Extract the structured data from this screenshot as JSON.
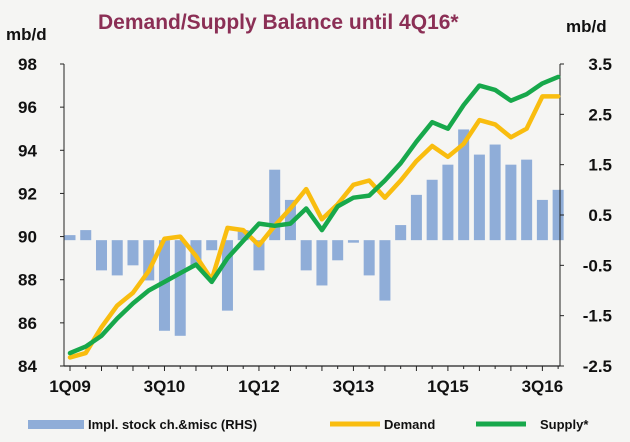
{
  "chart_data": {
    "type": "bar+line",
    "title": "Demand/Supply Balance until 4Q16*",
    "title_color": "#8b2f55",
    "y_left_unit": "mb/d",
    "y_right_unit": "mb/d",
    "y_left_range": [
      84,
      98
    ],
    "y_left_ticks": [
      "84",
      "86",
      "88",
      "90",
      "92",
      "94",
      "96",
      "98"
    ],
    "y_right_range": [
      -2.5,
      3.5
    ],
    "y_right_ticks": [
      "-2.5",
      "-1.5",
      "-0.5",
      "0.5",
      "1.5",
      "2.5",
      "3.5"
    ],
    "x_tick_labels": [
      {
        "label": "1Q09",
        "index": 0
      },
      {
        "label": "3Q10",
        "index": 6
      },
      {
        "label": "1Q12",
        "index": 12
      },
      {
        "label": "3Q13",
        "index": 18
      },
      {
        "label": "1Q15",
        "index": 24
      },
      {
        "label": "3Q16",
        "index": 30
      }
    ],
    "categories": [
      "1Q09",
      "2Q09",
      "3Q09",
      "4Q09",
      "1Q10",
      "2Q10",
      "3Q10",
      "4Q10",
      "1Q11",
      "2Q11",
      "3Q11",
      "4Q11",
      "1Q12",
      "2Q12",
      "3Q12",
      "4Q12",
      "1Q13",
      "2Q13",
      "3Q13",
      "4Q13",
      "1Q14",
      "2Q14",
      "3Q14",
      "4Q14",
      "1Q15",
      "2Q15",
      "3Q15",
      "4Q15",
      "1Q16",
      "2Q16",
      "3Q16",
      "4Q16"
    ],
    "series": [
      {
        "name": "Impl. stock ch.&misc (RHS)",
        "type": "bar",
        "axis": "right",
        "color": "#8fadd8",
        "values": [
          0.1,
          0.2,
          -0.6,
          -0.7,
          -0.5,
          -0.8,
          -1.8,
          -1.9,
          -0.5,
          -0.2,
          -1.4,
          0.2,
          -0.6,
          1.4,
          0.8,
          -0.6,
          -0.9,
          -0.4,
          -0.05,
          -0.7,
          -1.2,
          0.3,
          0.9,
          1.2,
          1.5,
          2.2,
          1.7,
          1.9,
          1.5,
          1.6,
          0.8,
          1.0
        ]
      },
      {
        "name": "Demand",
        "type": "line",
        "axis": "left",
        "color": "#f9bd0f",
        "values": [
          84.4,
          84.6,
          85.8,
          86.8,
          87.4,
          88.4,
          89.9,
          90.0,
          89.1,
          88.0,
          90.4,
          90.3,
          89.6,
          90.5,
          91.3,
          92.2,
          90.8,
          91.5,
          92.4,
          92.6,
          91.8,
          92.6,
          93.5,
          94.2,
          93.7,
          94.3,
          95.4,
          95.2,
          94.6,
          95.0,
          96.5,
          96.5
        ]
      },
      {
        "name": "Supply*",
        "type": "line",
        "axis": "left",
        "color": "#17a84b",
        "values": [
          84.6,
          84.9,
          85.4,
          86.2,
          86.9,
          87.5,
          87.9,
          88.3,
          88.7,
          87.9,
          89.0,
          89.8,
          90.6,
          90.5,
          90.6,
          91.3,
          90.3,
          91.4,
          91.8,
          91.9,
          92.6,
          93.4,
          94.4,
          95.3,
          95.0,
          96.1,
          97.0,
          96.8,
          96.3,
          96.6,
          97.1,
          97.4
        ]
      }
    ],
    "legend_placement": "bottom",
    "grid": false
  }
}
